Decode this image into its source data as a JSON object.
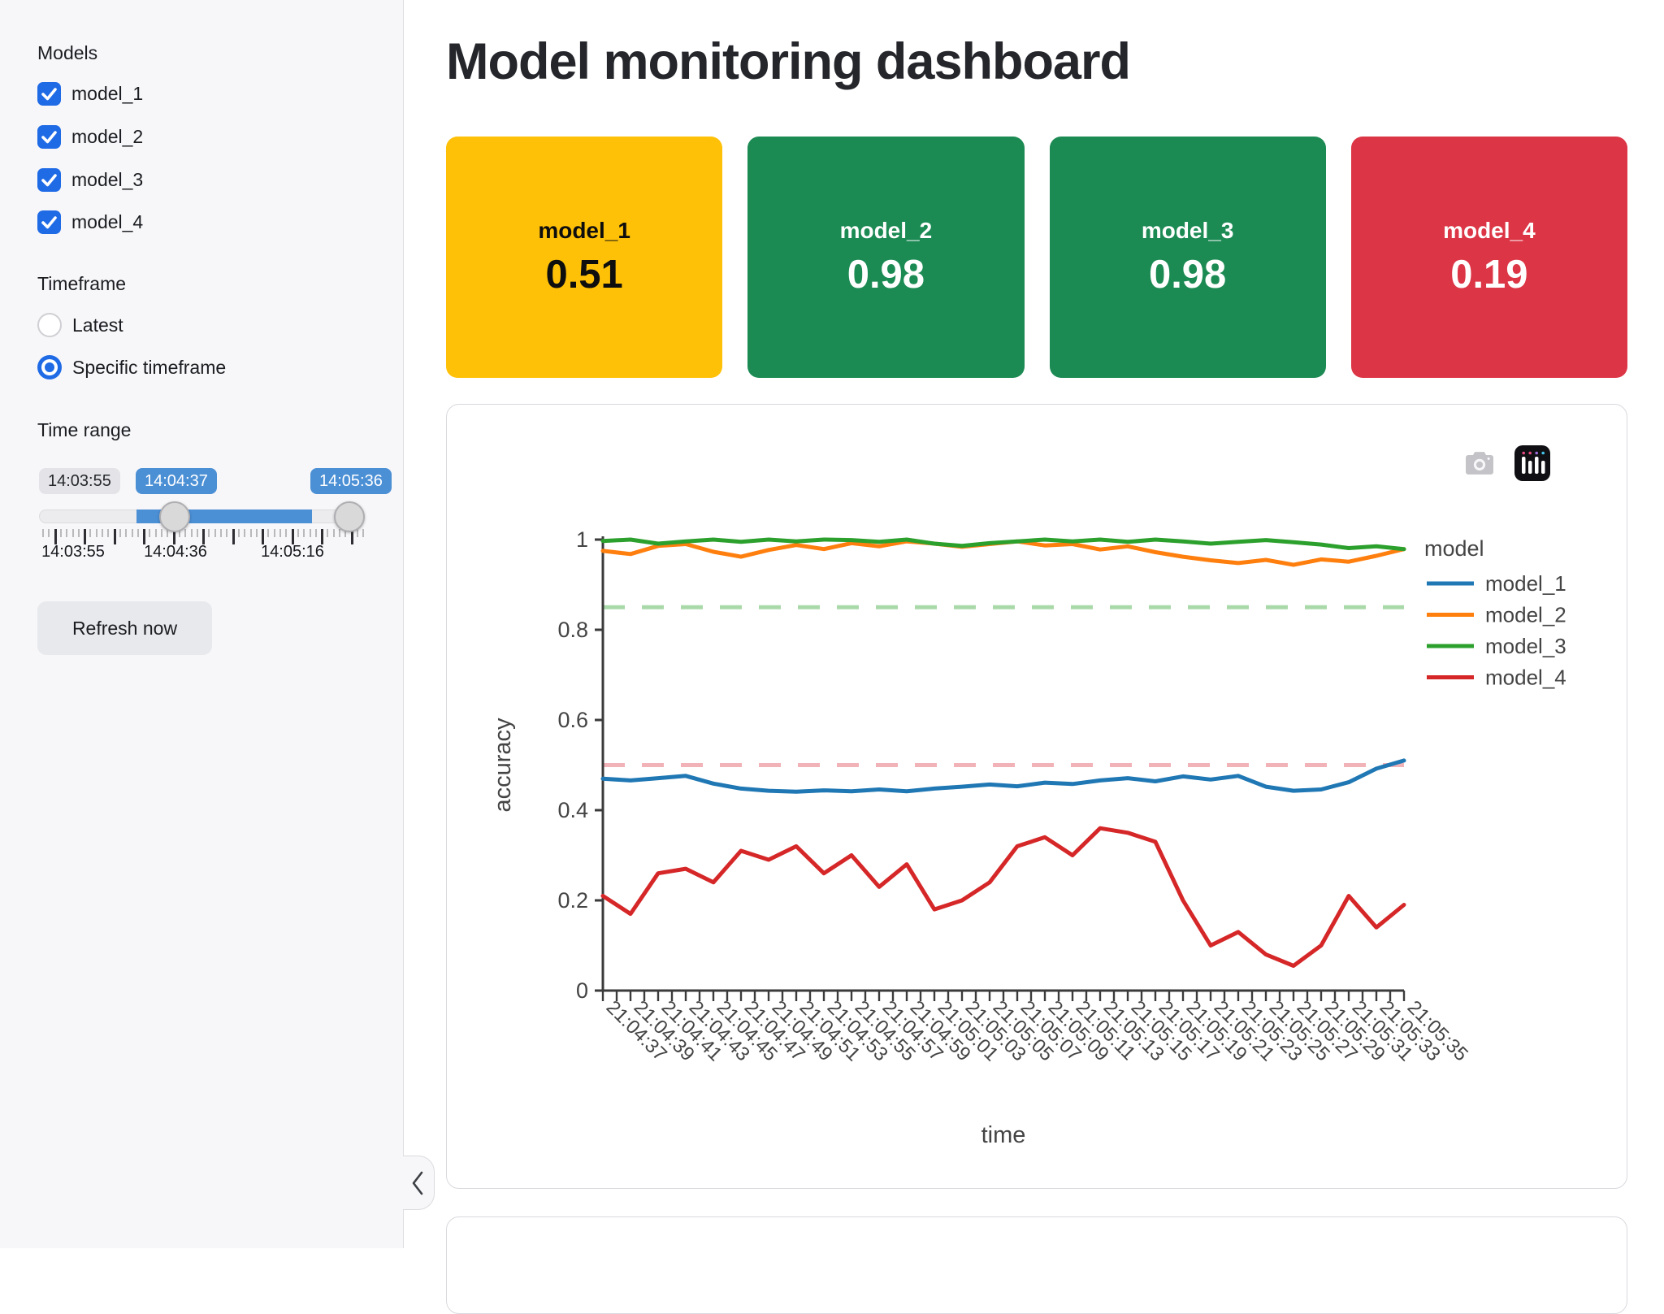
{
  "sidebar": {
    "models_label": "Models",
    "models": [
      {
        "label": "model_1",
        "checked": true
      },
      {
        "label": "model_2",
        "checked": true
      },
      {
        "label": "model_3",
        "checked": true
      },
      {
        "label": "model_4",
        "checked": true
      }
    ],
    "timeframe_label": "Timeframe",
    "timeframe_options": [
      {
        "label": "Latest",
        "selected": false
      },
      {
        "label": "Specific timeframe",
        "selected": true
      }
    ],
    "time_range_label": "Time range",
    "slider": {
      "min_label": "14:03:55",
      "start_label": "14:04:37",
      "end_label": "14:05:36",
      "axis_labels": [
        "14:03:55",
        "14:04:36",
        "14:05:16"
      ],
      "accent_color": "#4b8fd5"
    },
    "refresh_button": "Refresh now",
    "collapse_icon": "chevron-left"
  },
  "main": {
    "title": "Model monitoring dashboard",
    "metric_cards": [
      {
        "label": "model_1",
        "value": "0.51",
        "bg": "#ffc107",
        "text": "#0e0e0e"
      },
      {
        "label": "model_2",
        "value": "0.98",
        "bg": "#1b8a53",
        "text": "#ffffff"
      },
      {
        "label": "model_3",
        "value": "0.98",
        "bg": "#1b8a53",
        "text": "#ffffff"
      },
      {
        "label": "model_4",
        "value": "0.19",
        "bg": "#dc3545",
        "text": "#ffffff"
      }
    ],
    "toolbar_icons": [
      "camera-icon",
      "plotly-logo-icon"
    ]
  },
  "chart_data": {
    "type": "line",
    "title": "",
    "xlabel": "time",
    "ylabel": "accuracy",
    "ylim": [
      0,
      1
    ],
    "ytick_labels": [
      "0",
      "0.2",
      "0.4",
      "0.6",
      "0.8",
      "1"
    ],
    "grid": false,
    "legend_title": "model",
    "legend_position": "right",
    "categories": [
      "21:04:37",
      "21:04:39",
      "21:04:41",
      "21:04:43",
      "21:04:45",
      "21:04:47",
      "21:04:49",
      "21:04:51",
      "21:04:53",
      "21:04:55",
      "21:04:57",
      "21:04:59",
      "21:05:01",
      "21:05:03",
      "21:05:05",
      "21:05:07",
      "21:05:09",
      "21:05:11",
      "21:05:13",
      "21:05:15",
      "21:05:17",
      "21:05:19",
      "21:05:21",
      "21:05:23",
      "21:05:25",
      "21:05:27",
      "21:05:29",
      "21:05:31",
      "21:05:33",
      "21:05:35"
    ],
    "series": [
      {
        "name": "model_1",
        "color": "#1f77b4",
        "values": [
          0.47,
          0.466,
          0.471,
          0.476,
          0.459,
          0.448,
          0.443,
          0.441,
          0.444,
          0.442,
          0.446,
          0.442,
          0.448,
          0.452,
          0.457,
          0.453,
          0.461,
          0.458,
          0.466,
          0.471,
          0.464,
          0.475,
          0.468,
          0.476,
          0.452,
          0.443,
          0.446,
          0.462,
          0.492,
          0.51
        ]
      },
      {
        "name": "model_2",
        "color": "#ff7f0e",
        "values": [
          0.975,
          0.968,
          0.986,
          0.99,
          0.973,
          0.962,
          0.977,
          0.988,
          0.979,
          0.992,
          0.985,
          0.996,
          0.991,
          0.984,
          0.99,
          0.996,
          0.987,
          0.99,
          0.978,
          0.985,
          0.972,
          0.962,
          0.954,
          0.948,
          0.955,
          0.944,
          0.956,
          0.951,
          0.964,
          0.979
        ]
      },
      {
        "name": "model_3",
        "color": "#2ca02c",
        "values": [
          0.997,
          1.0,
          0.991,
          0.996,
          1.0,
          0.995,
          1.0,
          0.996,
          1.0,
          0.999,
          0.995,
          1.0,
          0.991,
          0.986,
          0.992,
          0.996,
          1.0,
          0.996,
          1.0,
          0.995,
          1.0,
          0.996,
          0.991,
          0.995,
          0.999,
          0.994,
          0.989,
          0.981,
          0.985,
          0.979
        ]
      },
      {
        "name": "model_4",
        "color": "#d62728",
        "values": [
          0.21,
          0.17,
          0.26,
          0.27,
          0.24,
          0.31,
          0.29,
          0.32,
          0.26,
          0.3,
          0.23,
          0.28,
          0.18,
          0.2,
          0.24,
          0.32,
          0.34,
          0.3,
          0.36,
          0.35,
          0.33,
          0.2,
          0.1,
          0.13,
          0.08,
          0.055,
          0.1,
          0.21,
          0.14,
          0.19
        ]
      }
    ],
    "thresholds": [
      {
        "value": 0.85,
        "color": "#a9d9a9",
        "style": "dashed"
      },
      {
        "value": 0.5,
        "color": "#f1b2b8",
        "style": "dashed"
      }
    ]
  }
}
